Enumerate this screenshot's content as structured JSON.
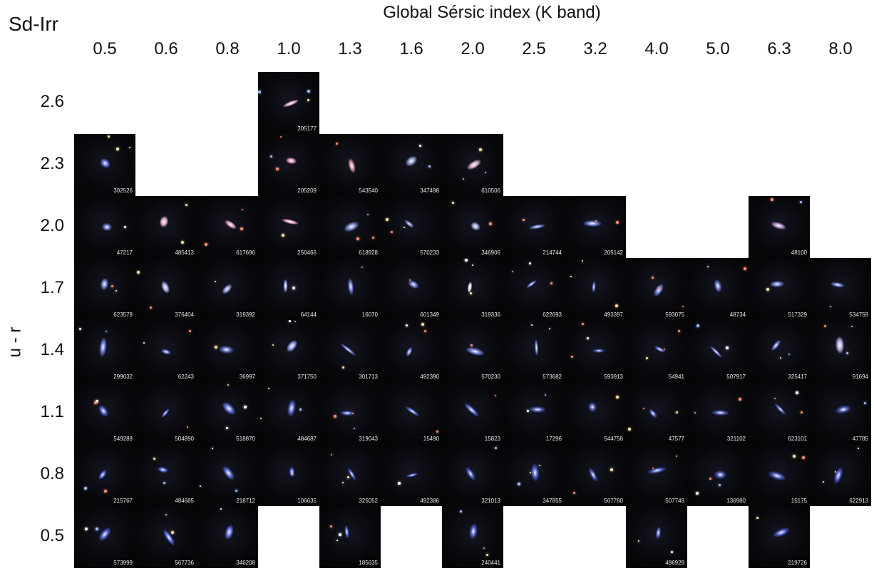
{
  "corner_label": "Sd-Irr",
  "x_title": "Global Sérsic index (K band)",
  "y_title": "u - r",
  "x_ticks": [
    "0.5",
    "0.6",
    "0.8",
    "1.0",
    "1.3",
    "1.6",
    "2.0",
    "2.5",
    "3.2",
    "4.0",
    "5.0",
    "6.3",
    "8.0"
  ],
  "y_ticks": [
    "2.6",
    "2.3",
    "2.0",
    "1.7",
    "1.4",
    "1.1",
    "0.8",
    "0.5"
  ],
  "cells": [
    {
      "col": 3,
      "row": 0,
      "id": "205177",
      "color": "#d8a0c8"
    },
    {
      "col": 0,
      "row": 1,
      "id": "302526",
      "color": "#5a6ad8"
    },
    {
      "col": 3,
      "row": 1,
      "id": "205209",
      "color": "#d890b0"
    },
    {
      "col": 4,
      "row": 1,
      "id": "543540",
      "color": "#c88898"
    },
    {
      "col": 5,
      "row": 1,
      "id": "347498",
      "color": "#8090c0"
    },
    {
      "col": 6,
      "row": 1,
      "id": "610506",
      "color": "#c8a0c0"
    },
    {
      "col": 0,
      "row": 2,
      "id": "47217",
      "color": "#6070c0"
    },
    {
      "col": 1,
      "row": 2,
      "id": "485413",
      "color": "#d8a0c8"
    },
    {
      "col": 2,
      "row": 2,
      "id": "617696",
      "color": "#d898b0"
    },
    {
      "col": 3,
      "row": 2,
      "id": "250466",
      "color": "#e0a0c0"
    },
    {
      "col": 4,
      "row": 2,
      "id": "618928",
      "color": "#7080c0"
    },
    {
      "col": 5,
      "row": 2,
      "id": "570233",
      "color": "#7080c0"
    },
    {
      "col": 6,
      "row": 2,
      "id": "346906",
      "color": "#9098d0"
    },
    {
      "col": 7,
      "row": 2,
      "id": "214744",
      "color": "#6070c8"
    },
    {
      "col": 8,
      "row": 2,
      "id": "205142",
      "color": "#6070c8"
    },
    {
      "col": 11,
      "row": 2,
      "id": "48100",
      "color": "#b088c8"
    },
    {
      "col": 0,
      "row": 3,
      "id": "623579",
      "color": "#6878c8"
    },
    {
      "col": 1,
      "row": 3,
      "id": "376404",
      "color": "#a0a0e0"
    },
    {
      "col": 2,
      "row": 3,
      "id": "319392",
      "color": "#8890d0"
    },
    {
      "col": 3,
      "row": 3,
      "id": "64144",
      "color": "#8898d8"
    },
    {
      "col": 4,
      "row": 3,
      "id": "16070",
      "color": "#6070c8"
    },
    {
      "col": 5,
      "row": 3,
      "id": "601349",
      "color": "#6070c8"
    },
    {
      "col": 6,
      "row": 3,
      "id": "319336",
      "color": "#e8d0e0"
    },
    {
      "col": 7,
      "row": 3,
      "id": "622693",
      "color": "#6070c8"
    },
    {
      "col": 8,
      "row": 3,
      "id": "493397",
      "color": "#6070c8"
    },
    {
      "col": 9,
      "row": 3,
      "id": "593075",
      "color": "#6070c8"
    },
    {
      "col": 10,
      "row": 3,
      "id": "48734",
      "color": "#6070c8"
    },
    {
      "col": 11,
      "row": 3,
      "id": "517329",
      "color": "#6070c8"
    },
    {
      "col": 12,
      "row": 3,
      "id": "534759",
      "color": "#6070c8"
    },
    {
      "col": 0,
      "row": 4,
      "id": "299032",
      "color": "#6070d0"
    },
    {
      "col": 1,
      "row": 4,
      "id": "62243",
      "color": "#6070c8"
    },
    {
      "col": 2,
      "row": 4,
      "id": "36997",
      "color": "#5060b8"
    },
    {
      "col": 3,
      "row": 4,
      "id": "371750",
      "color": "#8898e0"
    },
    {
      "col": 4,
      "row": 4,
      "id": "301713",
      "color": "#6070c8"
    },
    {
      "col": 5,
      "row": 4,
      "id": "492380",
      "color": "#6070c8"
    },
    {
      "col": 6,
      "row": 4,
      "id": "570230",
      "color": "#6070c8"
    },
    {
      "col": 7,
      "row": 4,
      "id": "573682",
      "color": "#7080c8"
    },
    {
      "col": 8,
      "row": 4,
      "id": "593913",
      "color": "#3848a0"
    },
    {
      "col": 9,
      "row": 4,
      "id": "54941",
      "color": "#5060b8"
    },
    {
      "col": 10,
      "row": 4,
      "id": "507917",
      "color": "#6070c8"
    },
    {
      "col": 11,
      "row": 4,
      "id": "325417",
      "color": "#6070c8"
    },
    {
      "col": 12,
      "row": 4,
      "id": "91694",
      "color": "#b0a0d8"
    },
    {
      "col": 0,
      "row": 5,
      "id": "549289",
      "color": "#4858c0"
    },
    {
      "col": 1,
      "row": 5,
      "id": "504890",
      "color": "#5060d0"
    },
    {
      "col": 2,
      "row": 5,
      "id": "518870",
      "color": "#5868d0"
    },
    {
      "col": 3,
      "row": 5,
      "id": "484687",
      "color": "#5060c0"
    },
    {
      "col": 4,
      "row": 5,
      "id": "319043",
      "color": "#4858b8"
    },
    {
      "col": 5,
      "row": 5,
      "id": "15490",
      "color": "#5060c0"
    },
    {
      "col": 6,
      "row": 5,
      "id": "15823",
      "color": "#4858b8"
    },
    {
      "col": 7,
      "row": 5,
      "id": "17296",
      "color": "#4050a8"
    },
    {
      "col": 8,
      "row": 5,
      "id": "544758",
      "color": "#4050a8"
    },
    {
      "col": 9,
      "row": 5,
      "id": "47577",
      "color": "#4050a8"
    },
    {
      "col": 10,
      "row": 5,
      "id": "321102",
      "color": "#4050a8"
    },
    {
      "col": 11,
      "row": 5,
      "id": "623101",
      "color": "#4050a8"
    },
    {
      "col": 12,
      "row": 5,
      "id": "47785",
      "color": "#4050a8"
    },
    {
      "col": 0,
      "row": 6,
      "id": "215767",
      "color": "#4858c8"
    },
    {
      "col": 1,
      "row": 6,
      "id": "484685",
      "color": "#4858d0"
    },
    {
      "col": 2,
      "row": 6,
      "id": "218712",
      "color": "#5060c8"
    },
    {
      "col": 3,
      "row": 6,
      "id": "106635",
      "color": "#4858c8"
    },
    {
      "col": 4,
      "row": 6,
      "id": "325052",
      "color": "#4050b8"
    },
    {
      "col": 5,
      "row": 6,
      "id": "492386",
      "color": "#4050b8"
    },
    {
      "col": 6,
      "row": 6,
      "id": "321013",
      "color": "#4050b0"
    },
    {
      "col": 7,
      "row": 6,
      "id": "347855",
      "color": "#4050b8"
    },
    {
      "col": 8,
      "row": 6,
      "id": "567760",
      "color": "#4050b0"
    },
    {
      "col": 9,
      "row": 6,
      "id": "507749",
      "color": "#4050b0"
    },
    {
      "col": 10,
      "row": 6,
      "id": "136980",
      "color": "#4050b0"
    },
    {
      "col": 11,
      "row": 6,
      "id": "15175",
      "color": "#4050b0"
    },
    {
      "col": 12,
      "row": 6,
      "id": "622913",
      "color": "#4858c8"
    },
    {
      "col": 0,
      "row": 7,
      "id": "573999",
      "color": "#4858d0"
    },
    {
      "col": 1,
      "row": 7,
      "id": "567736",
      "color": "#5060e0"
    },
    {
      "col": 2,
      "row": 7,
      "id": "346208",
      "color": "#5868e8"
    },
    {
      "col": 4,
      "row": 7,
      "id": "185635",
      "color": "#4858c8"
    },
    {
      "col": 6,
      "row": 7,
      "id": "240441",
      "color": "#4858c0"
    },
    {
      "col": 9,
      "row": 7,
      "id": "486929",
      "color": "#5060d0"
    },
    {
      "col": 11,
      "row": 7,
      "id": "219726",
      "color": "#4858c8"
    }
  ]
}
